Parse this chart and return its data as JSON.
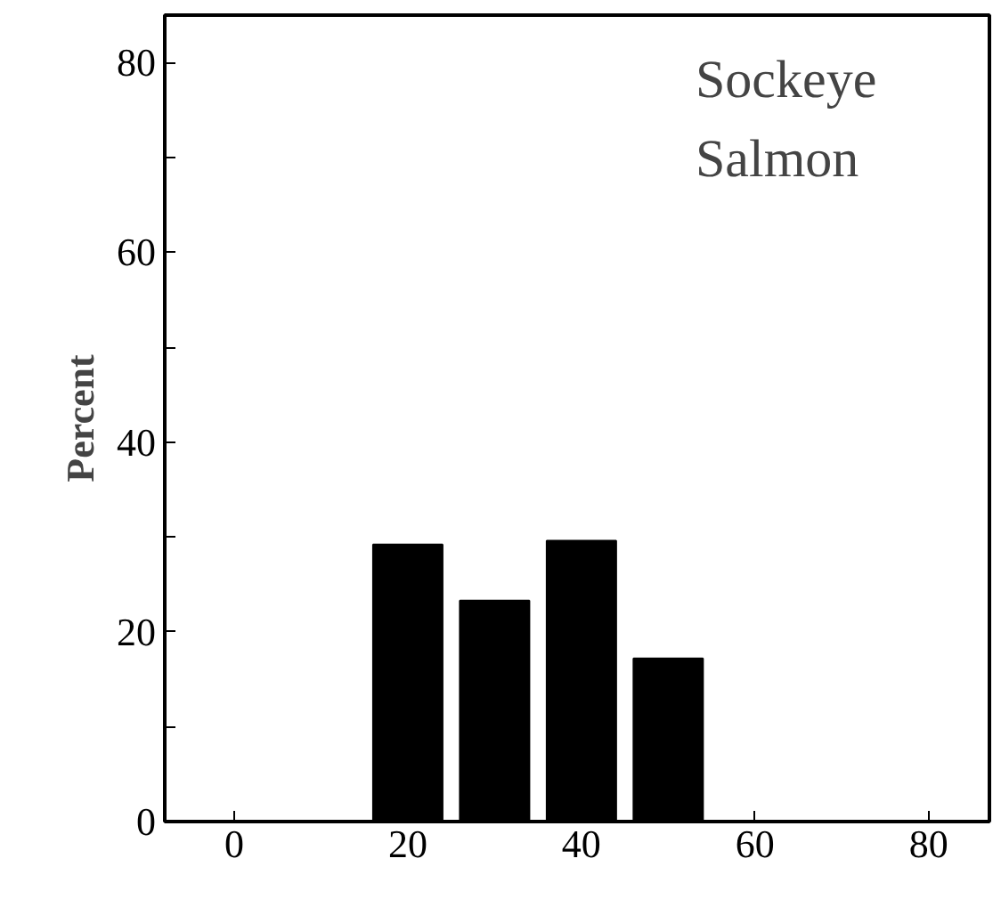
{
  "chart_data": {
    "type": "bar",
    "ylabel": "Percent",
    "annotations": [
      "Sockeye\nSalmon"
    ],
    "x": [
      20,
      30,
      40,
      50
    ],
    "values": [
      29.2,
      23.3,
      29.6,
      17.2
    ],
    "color": "#000000",
    "xlim": [
      -8,
      87
    ],
    "ylim": [
      0,
      85
    ],
    "xticks": [
      0,
      20,
      40,
      60,
      80
    ],
    "yticks": [
      0,
      {
        "value": 10,
        "label": null
      },
      20,
      {
        "value": 30,
        "label": null
      },
      40,
      {
        "value": 50,
        "label": null
      },
      60,
      {
        "value": 70,
        "label": null
      },
      80
    ],
    "grid": false
  }
}
